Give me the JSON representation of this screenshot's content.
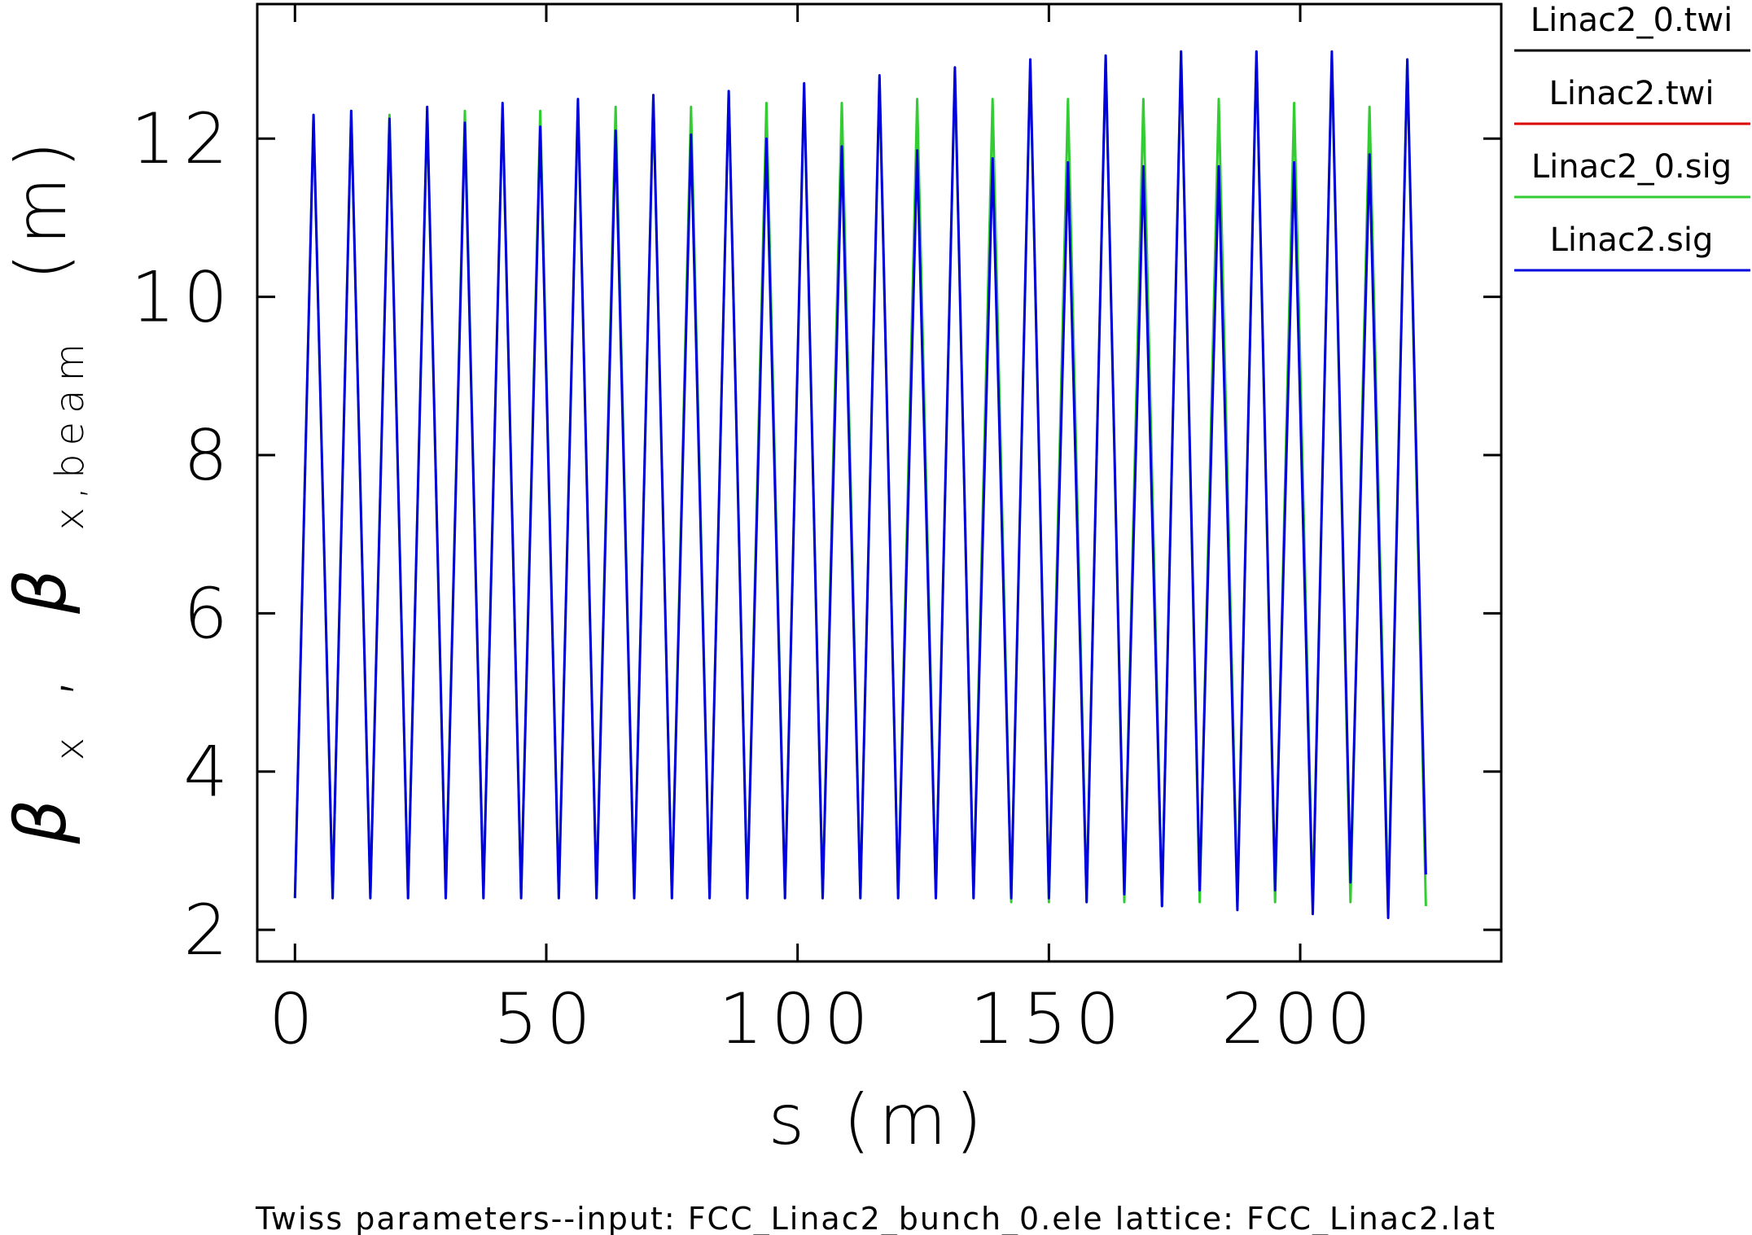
{
  "chart_data": {
    "type": "line",
    "caption": "Twiss parameters--input: FCC_Linac2_bunch_0.ele lattice: FCC_Linac2.lat",
    "xlabel": "s (m)",
    "ylabel_main": "β",
    "ylabel_sub1": "x",
    "ylabel_sep": ",",
    "ylabel_sub2": "x,beam",
    "ylabel_unit": "(m)",
    "xlim": [
      -7.5,
      240
    ],
    "ylim": [
      1.6,
      13.7
    ],
    "xticks": [
      0,
      50,
      100,
      150,
      200
    ],
    "xtick_labels": [
      "0",
      "50",
      "100",
      "150",
      "200"
    ],
    "yticks": [
      2,
      4,
      6,
      8,
      10,
      12
    ],
    "ytick_labels": [
      "2",
      "4",
      "6",
      "8",
      "10",
      "12"
    ],
    "grid": false,
    "legend_position": "right",
    "legend": [
      {
        "name": "Linac2_0.twi",
        "color": "#000000"
      },
      {
        "name": "Linac2.twi",
        "color": "#dd0000"
      },
      {
        "name": "Linac2_0.sig",
        "color": "#33cc33"
      },
      {
        "name": "Linac2.sig",
        "color": "#0000dd"
      }
    ],
    "series": [
      {
        "name": "Linac2_0.sig",
        "color": "#33cc33",
        "x": [
          0,
          3.7,
          7.5,
          11.2,
          15.0,
          18.8,
          22.5,
          26.3,
          30.0,
          33.8,
          37.5,
          41.3,
          45.0,
          48.8,
          52.5,
          56.3,
          60.0,
          63.8,
          67.5,
          71.3,
          75.0,
          78.8,
          82.5,
          86.3,
          90.0,
          93.8,
          97.5,
          101.3,
          105.0,
          108.8,
          112.5,
          116.3,
          120.0,
          123.8,
          127.5,
          131.3,
          135.0,
          138.8,
          142.5,
          146.3,
          150.0,
          153.8,
          157.5,
          161.3,
          165.0,
          168.8,
          172.5,
          176.3,
          180.0,
          183.8,
          187.5,
          191.3,
          195.0,
          198.8,
          202.5,
          206.3,
          210.0,
          213.8,
          217.5,
          221.3,
          225.0
        ],
        "y": [
          2.4,
          12.3,
          2.4,
          12.35,
          2.4,
          12.3,
          2.4,
          12.35,
          2.4,
          12.35,
          2.4,
          12.4,
          2.4,
          12.35,
          2.4,
          12.45,
          2.4,
          12.4,
          2.4,
          12.5,
          2.4,
          12.4,
          2.4,
          12.6,
          2.4,
          12.45,
          2.4,
          12.65,
          2.4,
          12.45,
          2.4,
          12.75,
          2.4,
          12.5,
          2.4,
          12.85,
          2.4,
          12.5,
          2.35,
          12.95,
          2.35,
          12.5,
          2.35,
          13.05,
          2.35,
          12.5,
          2.3,
          13.1,
          2.35,
          12.5,
          2.3,
          13.1,
          2.35,
          12.45,
          2.3,
          13.05,
          2.35,
          12.4,
          2.3,
          13.0,
          2.3
        ]
      },
      {
        "name": "Linac2.sig",
        "color": "#0000dd",
        "x": [
          0,
          3.7,
          7.5,
          11.2,
          15.0,
          18.8,
          22.5,
          26.3,
          30.0,
          33.8,
          37.5,
          41.3,
          45.0,
          48.8,
          52.5,
          56.3,
          60.0,
          63.8,
          67.5,
          71.3,
          75.0,
          78.8,
          82.5,
          86.3,
          90.0,
          93.8,
          97.5,
          101.3,
          105.0,
          108.8,
          112.5,
          116.3,
          120.0,
          123.8,
          127.5,
          131.3,
          135.0,
          138.8,
          142.5,
          146.3,
          150.0,
          153.8,
          157.5,
          161.3,
          165.0,
          168.8,
          172.5,
          176.3,
          180.0,
          183.8,
          187.5,
          191.3,
          195.0,
          198.8,
          202.5,
          206.3,
          210.0,
          213.8,
          217.5,
          221.3,
          225.0
        ],
        "y": [
          2.4,
          12.3,
          2.4,
          12.35,
          2.4,
          12.25,
          2.4,
          12.4,
          2.4,
          12.2,
          2.4,
          12.45,
          2.4,
          12.15,
          2.4,
          12.5,
          2.4,
          12.1,
          2.4,
          12.55,
          2.4,
          12.05,
          2.4,
          12.6,
          2.4,
          12.0,
          2.4,
          12.7,
          2.4,
          11.9,
          2.4,
          12.8,
          2.4,
          11.85,
          2.4,
          12.9,
          2.4,
          11.75,
          2.4,
          13.0,
          2.4,
          11.7,
          2.35,
          13.05,
          2.45,
          11.65,
          2.3,
          13.1,
          2.5,
          11.65,
          2.25,
          13.1,
          2.5,
          11.7,
          2.2,
          13.1,
          2.6,
          11.8,
          2.15,
          13.0,
          2.7
        ]
      }
    ]
  }
}
